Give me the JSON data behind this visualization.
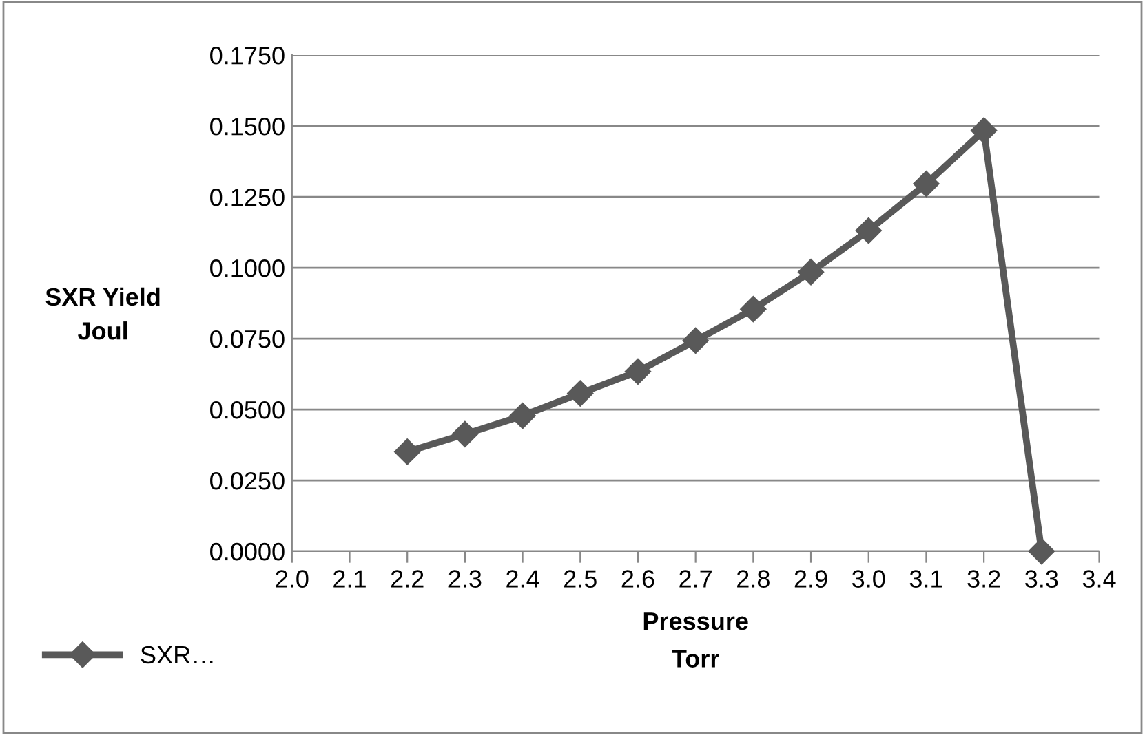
{
  "chart_data": {
    "type": "line",
    "xlabel": "Pressure\nTorr",
    "ylabel": "SXR Yield\nJoul",
    "x": [
      2.2,
      2.3,
      2.4,
      2.5,
      2.6,
      2.7,
      2.8,
      2.9,
      3.0,
      3.1,
      3.2,
      3.3
    ],
    "series": [
      {
        "name": "SXR…",
        "color": "#595959",
        "values": [
          0.0351,
          0.0413,
          0.0478,
          0.0557,
          0.0634,
          0.0743,
          0.0854,
          0.0985,
          0.1131,
          0.1296,
          0.1484,
          0.0
        ]
      }
    ],
    "xlim": [
      2.0,
      3.4
    ],
    "xticks": [
      {
        "value": 2,
        "label": "2.0"
      },
      2.1,
      2.2,
      2.3,
      2.4,
      2.5,
      2.6,
      2.7,
      2.8,
      2.9,
      {
        "value": 3,
        "label": "3.0"
      },
      3.1,
      3.2,
      3.3,
      3.4
    ],
    "ylim": [
      0,
      0.175
    ],
    "yticks": [
      {
        "value": 0,
        "label": "0.0000"
      },
      {
        "value": 0.025,
        "label": "0.0250"
      },
      {
        "value": 0.05,
        "label": "0.0500"
      },
      {
        "value": 0.075,
        "label": "0.0750"
      },
      {
        "value": 0.1,
        "label": "0.1000"
      },
      {
        "value": 0.125,
        "label": "0.1250"
      },
      {
        "value": 0.15,
        "label": "0.1500"
      },
      {
        "value": 0.175,
        "label": "0.1750"
      }
    ],
    "grid": "y",
    "legend": "bottom left",
    "marker": "diamond",
    "line_style": "solid"
  }
}
